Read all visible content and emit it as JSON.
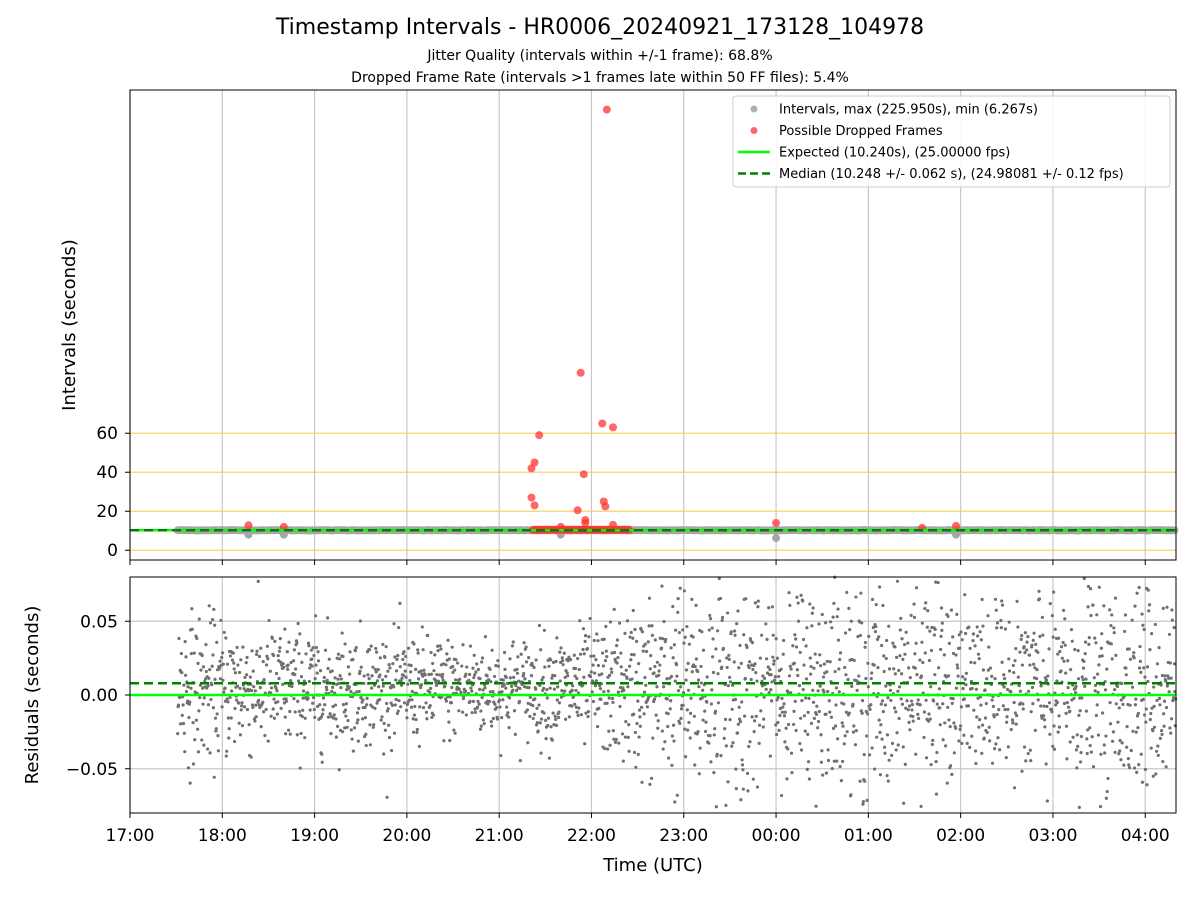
{
  "figure": {
    "title": "Timestamp Intervals - HR0006_20240921_173128_104978",
    "subtitle_1": "Jitter Quality (intervals within +/-1 frame): 68.8%",
    "subtitle_2": "Dropped Frame Rate (intervals >1 frames late within 50 FF files): 5.4%"
  },
  "chart_data": [
    {
      "type": "scatter",
      "name": "intervals",
      "ylabel": "Intervals (seconds)",
      "xlabel": "",
      "x_axis": "time (UTC)",
      "xlim": [
        "17:00",
        "04:20"
      ],
      "ylim": [
        -5,
        236
      ],
      "x_ticks": [
        "17:00",
        "18:00",
        "19:00",
        "20:00",
        "21:00",
        "22:00",
        "23:00",
        "00:00",
        "01:00",
        "02:00",
        "03:00",
        "04:00"
      ],
      "y_ticks": [
        0,
        20,
        40,
        60
      ],
      "y_reference_lines": [
        0,
        10,
        20,
        40,
        60
      ],
      "reference_line_color": "#ffc44d",
      "grid": "vertical",
      "legend_position": "top-right",
      "legend": [
        {
          "label": "Intervals, max (225.950s), min (6.267s)",
          "marker": "circle",
          "color": "#a6a6a6"
        },
        {
          "label": "Possible Dropped Frames",
          "marker": "circle",
          "color": "#ff4d4d"
        },
        {
          "label": "Expected (10.240s), (25.00000 fps)",
          "marker": "solid-line",
          "color": "#00ff00"
        },
        {
          "label": "Median (10.248 +/- 0.062 s), (24.98081 +/- 0.12 fps)",
          "marker": "dashed-line",
          "color": "#008000"
        }
      ],
      "expected_value": 10.24,
      "median_value": 10.248,
      "intervals_time_range": [
        "17:31",
        "04:20"
      ],
      "intervals_outliers": [
        {
          "x": "18:17",
          "y": 8
        },
        {
          "x": "18:40",
          "y": 8
        },
        {
          "x": "21:40",
          "y": 8
        },
        {
          "x": "00:00",
          "y": 6.267
        },
        {
          "x": "01:57",
          "y": 8
        }
      ],
      "dropped_frames": [
        {
          "x": "18:17",
          "y": 12.8
        },
        {
          "x": "18:40",
          "y": 12
        },
        {
          "x": "21:21",
          "y": 42
        },
        {
          "x": "21:23",
          "y": 45
        },
        {
          "x": "21:26",
          "y": 59
        },
        {
          "x": "21:21",
          "y": 27
        },
        {
          "x": "21:23",
          "y": 23
        },
        {
          "x": "21:40",
          "y": 12
        },
        {
          "x": "21:51",
          "y": 20.5
        },
        {
          "x": "21:53",
          "y": 91
        },
        {
          "x": "21:55",
          "y": 39
        },
        {
          "x": "21:56",
          "y": 15.5
        },
        {
          "x": "21:56",
          "y": 14
        },
        {
          "x": "22:07",
          "y": 65
        },
        {
          "x": "22:08",
          "y": 25
        },
        {
          "x": "22:09",
          "y": 22.5
        },
        {
          "x": "22:10",
          "y": 225.95
        },
        {
          "x": "22:14",
          "y": 63
        },
        {
          "x": "22:14",
          "y": 13
        },
        {
          "x": "00:00",
          "y": 14
        },
        {
          "x": "01:35",
          "y": 11.5
        },
        {
          "x": "01:57",
          "y": 12.5
        }
      ],
      "dropped_frames_cluster": {
        "x_range": [
          "21:22",
          "22:25"
        ],
        "y": 10.5
      }
    },
    {
      "type": "scatter",
      "name": "residuals",
      "ylabel": "Residuals (seconds)",
      "xlabel": "Time (UTC)",
      "xlim": [
        "17:00",
        "04:20"
      ],
      "ylim": [
        -0.08,
        0.08
      ],
      "x_ticks": [
        "17:00",
        "18:00",
        "19:00",
        "20:00",
        "21:00",
        "22:00",
        "23:00",
        "00:00",
        "01:00",
        "02:00",
        "03:00",
        "04:00"
      ],
      "y_ticks": [
        0.05,
        0.0,
        -0.05
      ],
      "y_tick_labels": [
        "0.05",
        "0.00",
        "−0.05"
      ],
      "grid": "both",
      "expected_residual": 0.0,
      "median_residual": 0.008,
      "points_color": "#707070",
      "spread_profile": [
        {
          "x": "17:31",
          "std": 0.025
        },
        {
          "x": "19:00",
          "std": 0.02
        },
        {
          "x": "21:00",
          "std": 0.016
        },
        {
          "x": "22:00",
          "std": 0.02
        },
        {
          "x": "23:00",
          "std": 0.036
        },
        {
          "x": "04:20",
          "std": 0.036
        }
      ]
    }
  ]
}
